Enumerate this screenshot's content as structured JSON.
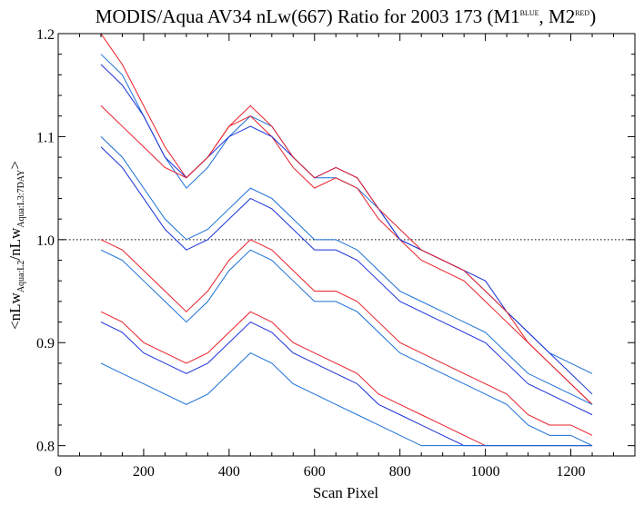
{
  "chart_data": {
    "type": "line",
    "title": {
      "main": "MODIS/Aqua AV34 nLw(667) Ratio for 2003 173 (M1",
      "sup1": "BLUE",
      "mid": ", M2",
      "sup2": "RED",
      "end": ")"
    },
    "ylabel": {
      "a": "<nLw",
      "sub1": "Aqua:L2",
      "b": "/nLw",
      "sub2": "Aqua:L3:7DAY",
      "c": ">"
    },
    "xlabel": "Scan Pixel",
    "xlim": [
      0,
      1350
    ],
    "ylim": [
      0.79,
      1.2
    ],
    "x_ticks": [
      "0",
      "200",
      "400",
      "600",
      "800",
      "1000",
      "1200"
    ],
    "x_tick_values": [
      0,
      200,
      400,
      600,
      800,
      1000,
      1200
    ],
    "y_ticks": [
      "0.8",
      "0.9",
      "1.0",
      "1.1",
      "1.2"
    ],
    "y_tick_values": [
      0.8,
      0.9,
      1.0,
      1.1,
      1.2
    ],
    "reference_line": 1.0,
    "colors": {
      "M1": "#1a6fd6",
      "M2": "#e8202a",
      "blue_dark": "#1a30d8"
    },
    "series": [
      {
        "color": "M1",
        "x": [
          100,
          150,
          200,
          250,
          300,
          350,
          400,
          450,
          500,
          550,
          600,
          650,
          700,
          750,
          800,
          850,
          900,
          950,
          1000,
          1050,
          1100,
          1150,
          1200,
          1250
        ],
        "y": [
          1.18,
          1.16,
          1.12,
          1.08,
          1.05,
          1.07,
          1.1,
          1.12,
          1.11,
          1.08,
          1.06,
          1.06,
          1.05,
          1.03,
          1.0,
          0.99,
          0.98,
          0.97,
          0.95,
          0.93,
          0.91,
          0.89,
          0.88,
          0.87
        ]
      },
      {
        "color": "M2",
        "x": [
          100,
          150,
          200,
          250,
          300,
          350,
          400,
          450,
          500,
          550,
          600,
          650,
          700,
          750,
          800,
          850,
          900,
          950,
          1000,
          1050,
          1100,
          1150,
          1200,
          1250
        ],
        "y": [
          1.2,
          1.17,
          1.13,
          1.09,
          1.06,
          1.08,
          1.11,
          1.12,
          1.1,
          1.07,
          1.05,
          1.06,
          1.05,
          1.02,
          1.0,
          0.98,
          0.97,
          0.96,
          0.94,
          0.92,
          0.9,
          0.88,
          0.86,
          0.84
        ]
      },
      {
        "color": "blue_dark",
        "x": [
          100,
          150,
          200,
          250,
          300,
          350,
          400,
          450,
          500,
          550,
          600,
          650,
          700,
          750,
          800,
          850,
          900,
          950,
          1000,
          1050,
          1100,
          1150,
          1200,
          1250
        ],
        "y": [
          1.17,
          1.15,
          1.12,
          1.08,
          1.06,
          1.08,
          1.1,
          1.11,
          1.1,
          1.08,
          1.06,
          1.07,
          1.06,
          1.03,
          1.0,
          0.99,
          0.98,
          0.97,
          0.96,
          0.93,
          0.91,
          0.89,
          0.87,
          0.85
        ]
      },
      {
        "color": "M2",
        "x": [
          100,
          150,
          200,
          250,
          300,
          350,
          400,
          450,
          500,
          550,
          600,
          650,
          700,
          750,
          800,
          850,
          900,
          950,
          1000,
          1050,
          1100,
          1150,
          1200,
          1250
        ],
        "y": [
          1.13,
          1.11,
          1.09,
          1.07,
          1.06,
          1.08,
          1.11,
          1.13,
          1.11,
          1.08,
          1.06,
          1.07,
          1.06,
          1.03,
          1.01,
          0.99,
          0.98,
          0.97,
          0.95,
          0.93,
          0.9,
          0.88,
          0.86,
          0.84
        ]
      },
      {
        "color": "M1",
        "x": [
          100,
          150,
          200,
          250,
          300,
          350,
          400,
          450,
          500,
          550,
          600,
          650,
          700,
          750,
          800,
          850,
          900,
          950,
          1000,
          1050,
          1100,
          1150,
          1200,
          1250
        ],
        "y": [
          1.1,
          1.08,
          1.05,
          1.02,
          1.0,
          1.01,
          1.03,
          1.05,
          1.04,
          1.02,
          1.0,
          1.0,
          0.99,
          0.97,
          0.95,
          0.94,
          0.93,
          0.92,
          0.91,
          0.89,
          0.87,
          0.86,
          0.85,
          0.84
        ]
      },
      {
        "color": "blue_dark",
        "x": [
          100,
          150,
          200,
          250,
          300,
          350,
          400,
          450,
          500,
          550,
          600,
          650,
          700,
          750,
          800,
          850,
          900,
          950,
          1000,
          1050,
          1100,
          1150,
          1200,
          1250
        ],
        "y": [
          1.09,
          1.07,
          1.04,
          1.01,
          0.99,
          1.0,
          1.02,
          1.04,
          1.03,
          1.01,
          0.99,
          0.99,
          0.98,
          0.96,
          0.94,
          0.93,
          0.92,
          0.91,
          0.9,
          0.88,
          0.86,
          0.85,
          0.84,
          0.83
        ]
      },
      {
        "color": "M2",
        "x": [
          100,
          150,
          200,
          250,
          300,
          350,
          400,
          450,
          500,
          550,
          600,
          650,
          700,
          750,
          800,
          850,
          900,
          950,
          1000,
          1050,
          1100,
          1150,
          1200,
          1250
        ],
        "y": [
          1.0,
          0.99,
          0.97,
          0.95,
          0.93,
          0.95,
          0.98,
          1.0,
          0.99,
          0.97,
          0.95,
          0.95,
          0.94,
          0.92,
          0.9,
          0.89,
          0.88,
          0.87,
          0.86,
          0.85,
          0.83,
          0.82,
          0.82,
          0.81
        ]
      },
      {
        "color": "M1",
        "x": [
          100,
          150,
          200,
          250,
          300,
          350,
          400,
          450,
          500,
          550,
          600,
          650,
          700,
          750,
          800,
          850,
          900,
          950,
          1000,
          1050,
          1100,
          1150,
          1200,
          1250
        ],
        "y": [
          0.99,
          0.98,
          0.96,
          0.94,
          0.92,
          0.94,
          0.97,
          0.99,
          0.98,
          0.96,
          0.94,
          0.94,
          0.93,
          0.91,
          0.89,
          0.88,
          0.87,
          0.86,
          0.85,
          0.84,
          0.82,
          0.81,
          0.81,
          0.8
        ]
      },
      {
        "color": "M2",
        "x": [
          100,
          150,
          200,
          250,
          300,
          350,
          400,
          450,
          500,
          550,
          600,
          650,
          700,
          750,
          800,
          850,
          900,
          950,
          1000,
          1050,
          1100,
          1150,
          1200,
          1250
        ],
        "y": [
          0.93,
          0.92,
          0.9,
          0.89,
          0.88,
          0.89,
          0.91,
          0.93,
          0.92,
          0.9,
          0.89,
          0.88,
          0.87,
          0.85,
          0.84,
          0.83,
          0.82,
          0.81,
          0.8,
          0.8,
          0.8,
          0.8,
          0.8,
          0.8
        ]
      },
      {
        "color": "blue_dark",
        "x": [
          100,
          150,
          200,
          250,
          300,
          350,
          400,
          450,
          500,
          550,
          600,
          650,
          700,
          750,
          800,
          850,
          900,
          950,
          1000,
          1050,
          1100,
          1150,
          1200,
          1250
        ],
        "y": [
          0.92,
          0.91,
          0.89,
          0.88,
          0.87,
          0.88,
          0.9,
          0.92,
          0.91,
          0.89,
          0.88,
          0.87,
          0.86,
          0.84,
          0.83,
          0.82,
          0.81,
          0.8,
          0.8,
          0.8,
          0.8,
          0.8,
          0.8,
          0.8
        ]
      },
      {
        "color": "M1",
        "x": [
          100,
          150,
          200,
          250,
          300,
          350,
          400,
          450,
          500,
          550,
          600,
          650,
          700,
          750,
          800,
          850,
          900,
          950,
          1000,
          1050,
          1100,
          1150,
          1200,
          1250
        ],
        "y": [
          0.88,
          0.87,
          0.86,
          0.85,
          0.84,
          0.85,
          0.87,
          0.89,
          0.88,
          0.86,
          0.85,
          0.84,
          0.83,
          0.82,
          0.81,
          0.8,
          0.8,
          0.8,
          0.8,
          0.8,
          0.8,
          0.8,
          0.8,
          0.8
        ]
      }
    ]
  }
}
